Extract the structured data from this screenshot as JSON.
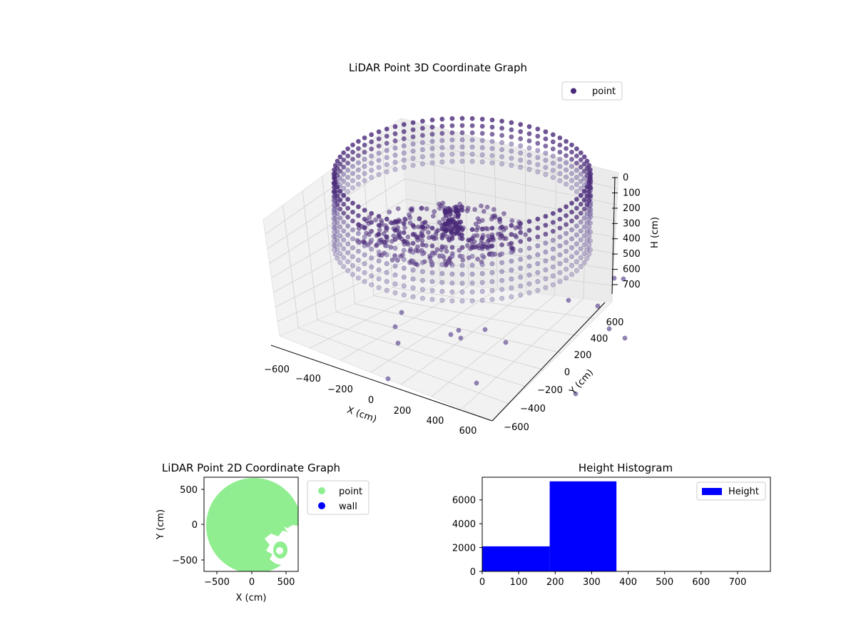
{
  "colors": {
    "point3d": "#482878",
    "point3d_light": "#7e6fa8",
    "point2d": "#90ee90",
    "wall": "#0000ff",
    "hist": "#0000ff",
    "pane": "#f2f2f2",
    "pane_grid": "#d0d0d0"
  },
  "chart_data": [
    {
      "id": "chart3d",
      "type": "scatter",
      "title": "LiDAR Point 3D Coordinate Graph",
      "xlabel": "X (cm)",
      "ylabel": "Y (cm)",
      "zlabel": "H (cm)",
      "xticks": [
        "−600",
        "−400",
        "−200",
        "0",
        "200",
        "400",
        "600"
      ],
      "yticks": [
        "−600",
        "−400",
        "−200",
        "0",
        "200",
        "400",
        "600"
      ],
      "zticks": [
        "0",
        "100",
        "200",
        "300",
        "400",
        "500",
        "600",
        "700"
      ],
      "xlim": [
        -650,
        650
      ],
      "ylim": [
        -650,
        650
      ],
      "zlim": [
        0,
        780
      ],
      "z_inverted": true,
      "legend": {
        "label": "point",
        "placement": "top-right"
      },
      "shape": {
        "description_ring_radius_cm": 620,
        "ring_height_range_cm": [
          0,
          350
        ]
      },
      "grid": true
    },
    {
      "id": "chart2d",
      "type": "scatter",
      "title": "LiDAR Point 2D Coordinate Graph",
      "xlabel": "X (cm)",
      "ylabel": "Y (cm)",
      "xticks": [
        "−500",
        "0",
        "500"
      ],
      "yticks": [
        "500",
        "0",
        "−500"
      ],
      "xlim": [
        -680,
        680
      ],
      "ylim": [
        -680,
        680
      ],
      "series": [
        {
          "name": "point"
        },
        {
          "name": "wall"
        }
      ],
      "legend_placement": "outside-right"
    },
    {
      "id": "hist",
      "type": "bar",
      "title": "Height Histogram",
      "xticks": [
        "0",
        "100",
        "200",
        "300",
        "400",
        "500",
        "600",
        "700"
      ],
      "yticks": [
        "0",
        "2000",
        "4000",
        "6000"
      ],
      "xlim": [
        0,
        790
      ],
      "ylim": [
        0,
        7900
      ],
      "bins": [
        {
          "start": 0,
          "end": 185,
          "count": 2100
        },
        {
          "start": 185,
          "end": 368,
          "count": 7550
        }
      ],
      "legend": {
        "label": "Height",
        "placement": "top-right"
      }
    }
  ]
}
